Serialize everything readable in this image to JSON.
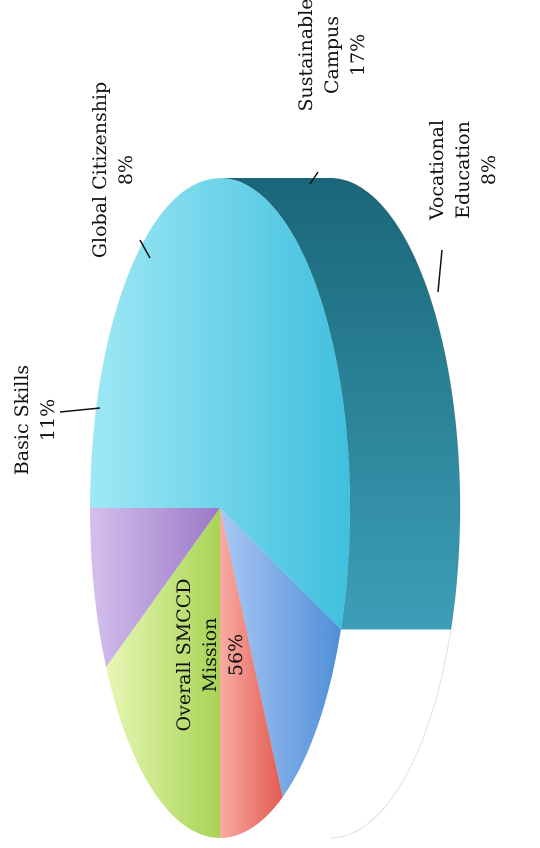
{
  "chart_data": {
    "type": "pie",
    "three_d": true,
    "rotation": "90deg-counterclockwise",
    "slices": [
      {
        "name": "Overall SMCCD Mission",
        "percent": 56,
        "label_lines": [
          "Overall SMCCD",
          "Mission",
          "56%"
        ],
        "color": "#5ccbe6"
      },
      {
        "name": "Basic Skills",
        "percent": 11,
        "label_lines": [
          "Basic Skills",
          "11%"
        ],
        "color": "#6ea6e6"
      },
      {
        "name": "Global Citizenship",
        "percent": 8,
        "label_lines": [
          "Global Citizenship",
          "8%"
        ],
        "color": "#ee7a72"
      },
      {
        "name": "Sustainable Campus",
        "percent": 17,
        "label_lines": [
          "Sustainable",
          "Campus",
          "17%"
        ],
        "color": "#c5e67a"
      },
      {
        "name": "Vocational Education",
        "percent": 8,
        "label_lines": [
          "Vocational",
          "Education",
          "8%"
        ],
        "color": "#b79ad6"
      }
    ]
  }
}
